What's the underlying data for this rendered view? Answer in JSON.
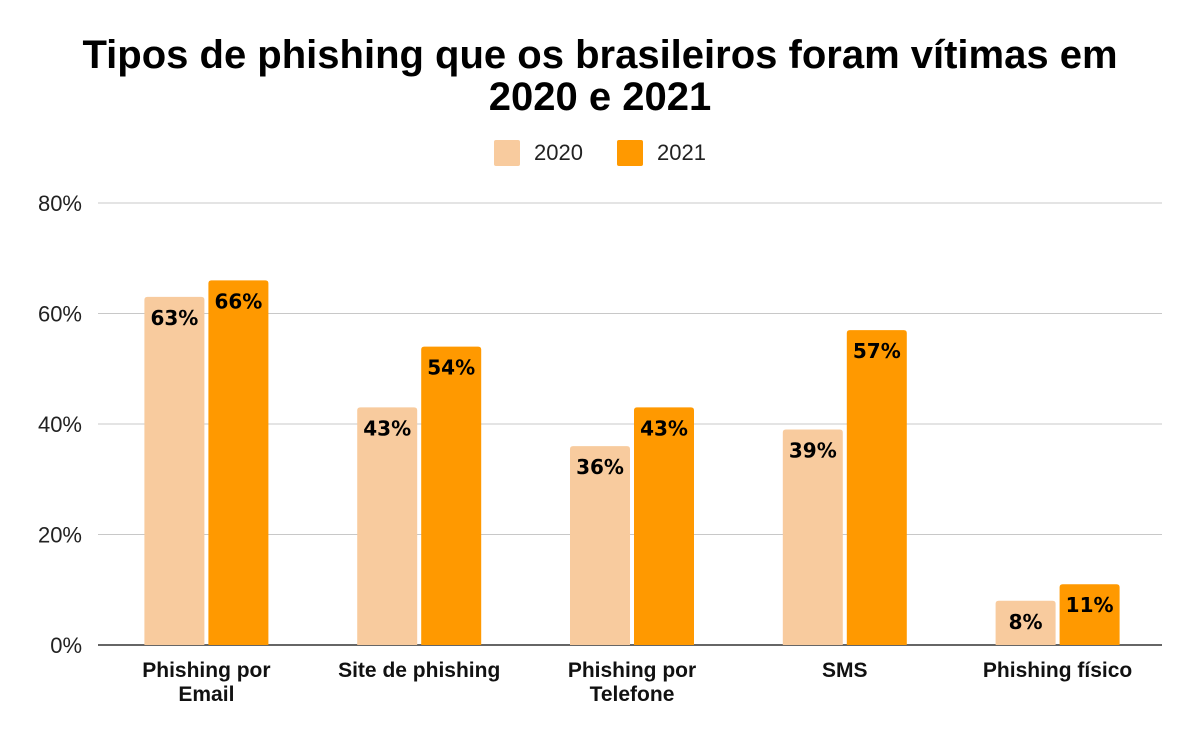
{
  "chart_data": {
    "type": "bar",
    "title": "Tipos de phishing que os brasileiros foram vítimas em 2020 e 2021",
    "categories": [
      [
        "Phishing por",
        "Email"
      ],
      [
        "Site de phishing"
      ],
      [
        "Phishing por",
        "Telefone"
      ],
      [
        "SMS"
      ],
      [
        "Phishing físico"
      ]
    ],
    "series": [
      {
        "name": "2020",
        "color": "#F8CB9E",
        "values": [
          63,
          43,
          36,
          39,
          8
        ],
        "labels": [
          "63%",
          "43%",
          "36%",
          "39%",
          "8%"
        ]
      },
      {
        "name": "2021",
        "color": "#FF9900",
        "values": [
          66,
          54,
          43,
          57,
          11
        ],
        "labels": [
          "66%",
          "54%",
          "43%",
          "57%",
          "11%"
        ]
      }
    ],
    "y_ticks": [
      "0%",
      "20%",
      "40%",
      "60%",
      "80%"
    ],
    "y_tick_values": [
      0,
      20,
      40,
      60,
      80
    ],
    "ylim": [
      0,
      80
    ],
    "xlabel": "",
    "ylabel": "",
    "grid": true,
    "legend": "top-center"
  }
}
